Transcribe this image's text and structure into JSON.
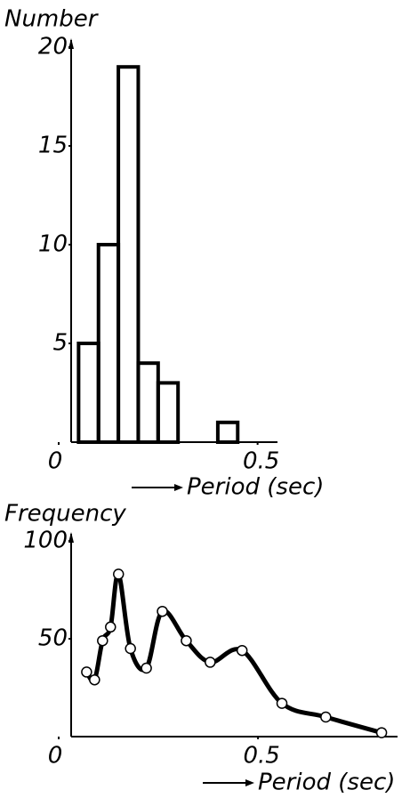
{
  "chart_data": [
    {
      "type": "histogram",
      "ylabel": "Number",
      "xlabel": "Period (sec)",
      "bins": [
        0.05,
        0.1,
        0.15,
        0.2,
        0.25,
        0.3,
        0.35,
        0.4,
        0.45
      ],
      "values": [
        5,
        10,
        19,
        4,
        3,
        0,
        0,
        1
      ],
      "color": "#000000",
      "xlim": [
        0,
        0.55
      ],
      "xticks": [
        0,
        0.5
      ],
      "ylim": [
        0,
        20
      ],
      "yticks": [
        5,
        10,
        15,
        20
      ]
    },
    {
      "type": "line",
      "ylabel": "Frequency",
      "xlabel": "Period (sec)",
      "x": [
        0.07,
        0.09,
        0.11,
        0.13,
        0.15,
        0.18,
        0.22,
        0.26,
        0.32,
        0.38,
        0.46,
        0.56,
        0.67,
        0.81
      ],
      "values": [
        33,
        29,
        49,
        56,
        83,
        45,
        35,
        64,
        49,
        38,
        44,
        17,
        10,
        2
      ],
      "color": "#000000",
      "xlim": [
        0,
        0.85
      ],
      "xticks": [
        0,
        0.5
      ],
      "ylim": [
        0,
        100
      ],
      "yticks": [
        50,
        100
      ]
    }
  ]
}
